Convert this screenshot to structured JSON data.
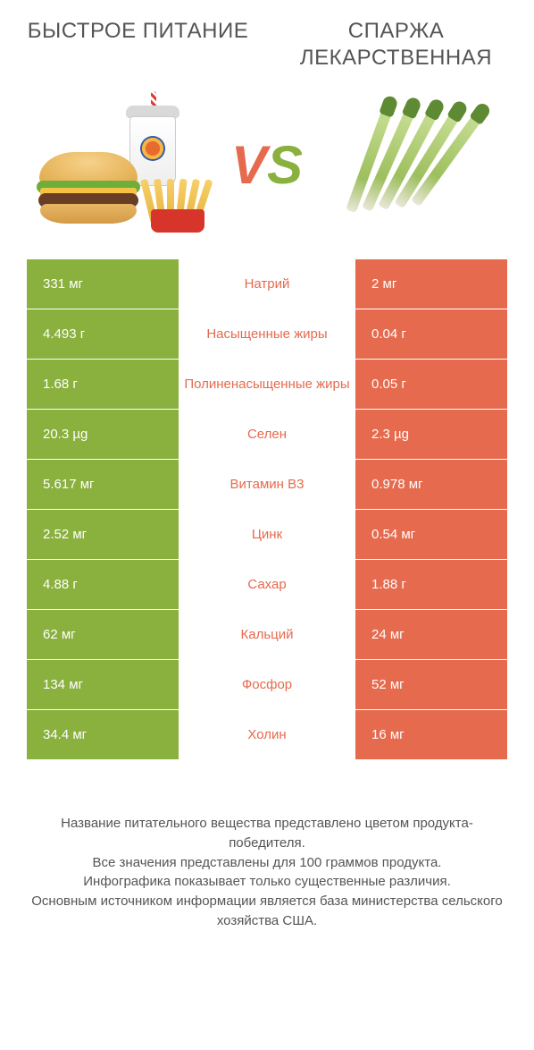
{
  "colors": {
    "left_bar": "#8ab03e",
    "right_bar": "#e66a4e",
    "label_green": "#8ab03e",
    "label_orange": "#e66a4e",
    "background": "#ffffff",
    "text": "#555555"
  },
  "header": {
    "left_title": "Быстрое питание",
    "right_title": "Спаржа лекарственная"
  },
  "vs": {
    "v": "V",
    "s": "S"
  },
  "table": {
    "rows": [
      {
        "left": "331 мг",
        "label": "Натрий",
        "right": "2 мг",
        "winner": "left"
      },
      {
        "left": "4.493 г",
        "label": "Насыщенные жиры",
        "right": "0.04 г",
        "winner": "left"
      },
      {
        "left": "1.68 г",
        "label": "Полиненасыщенные жиры",
        "right": "0.05 г",
        "winner": "left"
      },
      {
        "left": "20.3 µg",
        "label": "Селен",
        "right": "2.3 µg",
        "winner": "left"
      },
      {
        "left": "5.617 мг",
        "label": "Витамин B3",
        "right": "0.978 мг",
        "winner": "left"
      },
      {
        "left": "2.52 мг",
        "label": "Цинк",
        "right": "0.54 мг",
        "winner": "left"
      },
      {
        "left": "4.88 г",
        "label": "Сахар",
        "right": "1.88 г",
        "winner": "left"
      },
      {
        "left": "62 мг",
        "label": "Кальций",
        "right": "24 мг",
        "winner": "left"
      },
      {
        "left": "134 мг",
        "label": "Фосфор",
        "right": "52 мг",
        "winner": "left"
      },
      {
        "left": "34.4 мг",
        "label": "Холин",
        "right": "16 мг",
        "winner": "left"
      }
    ]
  },
  "footer": {
    "line1": "Название питательного вещества представлено цветом продукта-победителя.",
    "line2": "Все значения представлены для 100 граммов продукта.",
    "line3": "Инфографика показывает только существенные различия.",
    "line4": "Основным источником информации является база министерства сельского хозяйства США."
  }
}
